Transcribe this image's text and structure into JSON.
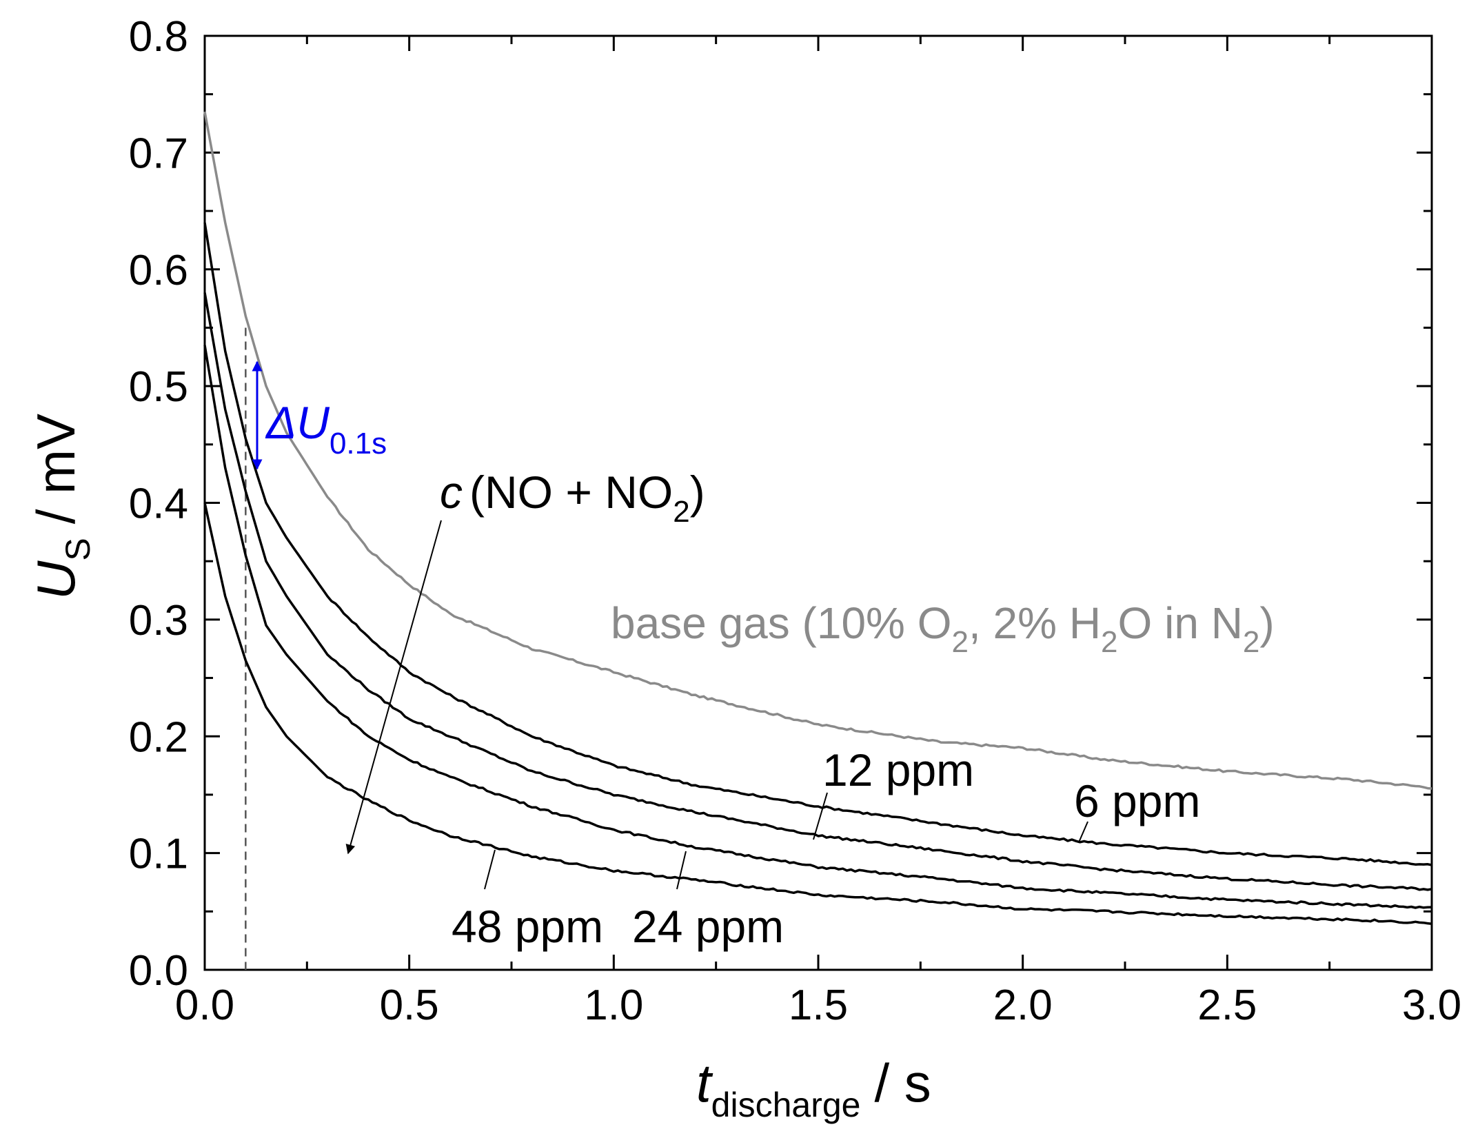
{
  "chart_data": {
    "type": "line",
    "xlabel": {
      "symbol": "t",
      "subscript": "discharge",
      "unit": "/ s"
    },
    "ylabel": {
      "symbol": "U",
      "subscript": "S",
      "unit": "/ mV"
    },
    "xlim": [
      0.0,
      3.0
    ],
    "ylim": [
      0.0,
      0.8
    ],
    "x_ticks": [
      "0.0",
      "0.5",
      "1.0",
      "1.5",
      "2.0",
      "2.5",
      "3.0"
    ],
    "y_ticks": [
      "0.0",
      "0.1",
      "0.2",
      "0.3",
      "0.4",
      "0.5",
      "0.6",
      "0.7",
      "0.8"
    ],
    "marker_time": 0.1,
    "grid": false,
    "series": [
      {
        "name": "base gas",
        "color": "#8a8a8a",
        "x": [
          0,
          0.05,
          0.1,
          0.15,
          0.2,
          0.3,
          0.4,
          0.5,
          0.6,
          0.8,
          1.0,
          1.2,
          1.5,
          1.8,
          2.0,
          2.2,
          2.5,
          2.8,
          3.0
        ],
        "y": [
          0.735,
          0.64,
          0.56,
          0.5,
          0.46,
          0.405,
          0.36,
          0.33,
          0.305,
          0.275,
          0.255,
          0.235,
          0.21,
          0.195,
          0.19,
          0.18,
          0.17,
          0.163,
          0.156
        ]
      },
      {
        "name": "6 ppm",
        "color": "#000000",
        "x": [
          0,
          0.05,
          0.1,
          0.15,
          0.2,
          0.3,
          0.4,
          0.5,
          0.6,
          0.8,
          1.0,
          1.2,
          1.5,
          1.8,
          2.0,
          2.2,
          2.5,
          2.8,
          3.0
        ],
        "y": [
          0.64,
          0.53,
          0.455,
          0.4,
          0.37,
          0.32,
          0.285,
          0.255,
          0.235,
          0.2,
          0.175,
          0.158,
          0.14,
          0.125,
          0.115,
          0.108,
          0.1,
          0.095,
          0.09
        ]
      },
      {
        "name": "12 ppm",
        "color": "#000000",
        "x": [
          0,
          0.05,
          0.1,
          0.15,
          0.2,
          0.3,
          0.4,
          0.5,
          0.6,
          0.8,
          1.0,
          1.2,
          1.5,
          1.8,
          2.0,
          2.2,
          2.5,
          2.8,
          3.0
        ],
        "y": [
          0.58,
          0.48,
          0.41,
          0.35,
          0.32,
          0.27,
          0.24,
          0.215,
          0.2,
          0.17,
          0.15,
          0.135,
          0.115,
          0.102,
          0.093,
          0.086,
          0.078,
          0.072,
          0.069
        ]
      },
      {
        "name": "24 ppm",
        "color": "#000000",
        "x": [
          0,
          0.05,
          0.1,
          0.15,
          0.2,
          0.3,
          0.4,
          0.5,
          0.6,
          0.8,
          1.0,
          1.2,
          1.5,
          1.8,
          2.0,
          2.2,
          2.5,
          2.8,
          3.0
        ],
        "y": [
          0.535,
          0.43,
          0.355,
          0.295,
          0.27,
          0.23,
          0.2,
          0.18,
          0.165,
          0.14,
          0.12,
          0.105,
          0.088,
          0.078,
          0.07,
          0.066,
          0.06,
          0.056,
          0.053
        ]
      },
      {
        "name": "48 ppm",
        "color": "#000000",
        "x": [
          0,
          0.05,
          0.1,
          0.15,
          0.2,
          0.3,
          0.4,
          0.5,
          0.6,
          0.8,
          1.0,
          1.2,
          1.5,
          1.8,
          2.0,
          2.2,
          2.5,
          2.8,
          3.0
        ],
        "y": [
          0.4,
          0.32,
          0.265,
          0.225,
          0.2,
          0.165,
          0.145,
          0.128,
          0.115,
          0.097,
          0.085,
          0.077,
          0.064,
          0.058,
          0.052,
          0.05,
          0.046,
          0.043,
          0.04
        ]
      }
    ],
    "annotations": {
      "delta_u": {
        "symbol": "ΔU",
        "subscript": "0.1s",
        "color": "#0000ee"
      },
      "concentration": {
        "prefix": "c",
        "text": "(NO + NO",
        "sub": "2",
        "suffix": ")"
      },
      "base_gas": {
        "part1": "base gas (10% O",
        "sub1": "2",
        "part2": ", 2% H",
        "sub2": "2",
        "part3": "O in N",
        "sub3": "2",
        "part4": ")"
      },
      "labels": {
        "ppm12": "12 ppm",
        "ppm6": "6 ppm",
        "ppm48": "48 ppm",
        "ppm24": "24 ppm"
      }
    }
  }
}
